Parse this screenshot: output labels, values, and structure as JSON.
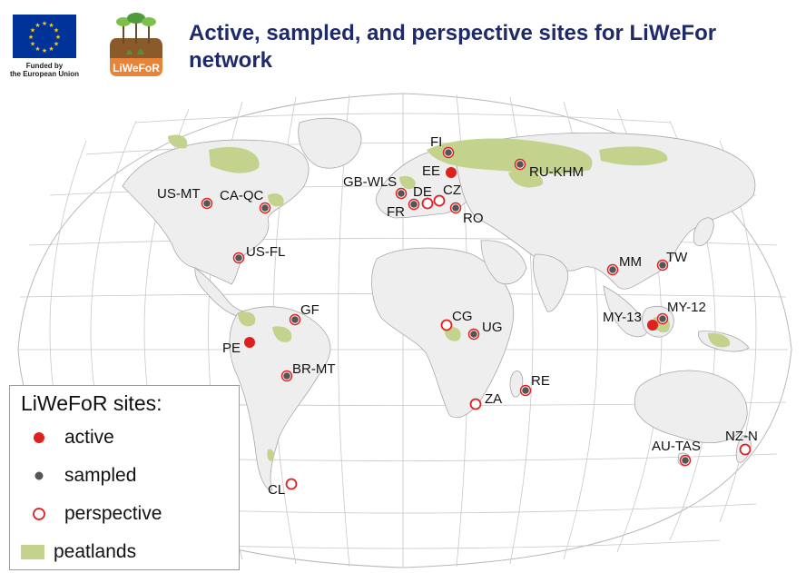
{
  "header": {
    "eu_caption_line1": "Funded by",
    "eu_caption_line2": "the European Union",
    "logo_text": "LiWeFoR",
    "title": "Active, sampled, and perspective sites for LiWeFor network"
  },
  "colors": {
    "active": "#e0201f",
    "sampled": "#555555",
    "perspective": "#e0201f",
    "peatlands": "#c3d38e",
    "land": "#eeeeee",
    "title": "#1f2a6b",
    "eu_blue": "#003399",
    "eu_star": "#ffcc00"
  },
  "sites": [
    {
      "code": "FI",
      "type": "sampled"
    },
    {
      "code": "EE",
      "type": "active"
    },
    {
      "code": "RU-KHM",
      "type": "sampled"
    },
    {
      "code": "GB-WLS",
      "type": "sampled"
    },
    {
      "code": "DE",
      "type": "perspective"
    },
    {
      "code": "CZ",
      "type": "perspective"
    },
    {
      "code": "FR",
      "type": "sampled"
    },
    {
      "code": "RO",
      "type": "sampled"
    },
    {
      "code": "US-MT",
      "type": "sampled"
    },
    {
      "code": "CA-QC",
      "type": "sampled"
    },
    {
      "code": "US-FL",
      "type": "sampled"
    },
    {
      "code": "GF",
      "type": "sampled"
    },
    {
      "code": "PE",
      "type": "active"
    },
    {
      "code": "BR-MT",
      "type": "sampled"
    },
    {
      "code": "CL",
      "type": "perspective"
    },
    {
      "code": "CG",
      "type": "perspective"
    },
    {
      "code": "UG",
      "type": "sampled"
    },
    {
      "code": "ZA",
      "type": "perspective"
    },
    {
      "code": "RE",
      "type": "sampled"
    },
    {
      "code": "MM",
      "type": "sampled"
    },
    {
      "code": "TW",
      "type": "sampled"
    },
    {
      "code": "MY-13",
      "type": "active"
    },
    {
      "code": "MY-12",
      "type": "sampled"
    },
    {
      "code": "AU-TAS",
      "type": "sampled"
    },
    {
      "code": "NZ-N",
      "type": "perspective"
    }
  ],
  "legend": {
    "title": "LiWeFoR sites:",
    "active": "active",
    "sampled": "sampled",
    "perspective": "perspective",
    "peatlands": "peatlands"
  }
}
